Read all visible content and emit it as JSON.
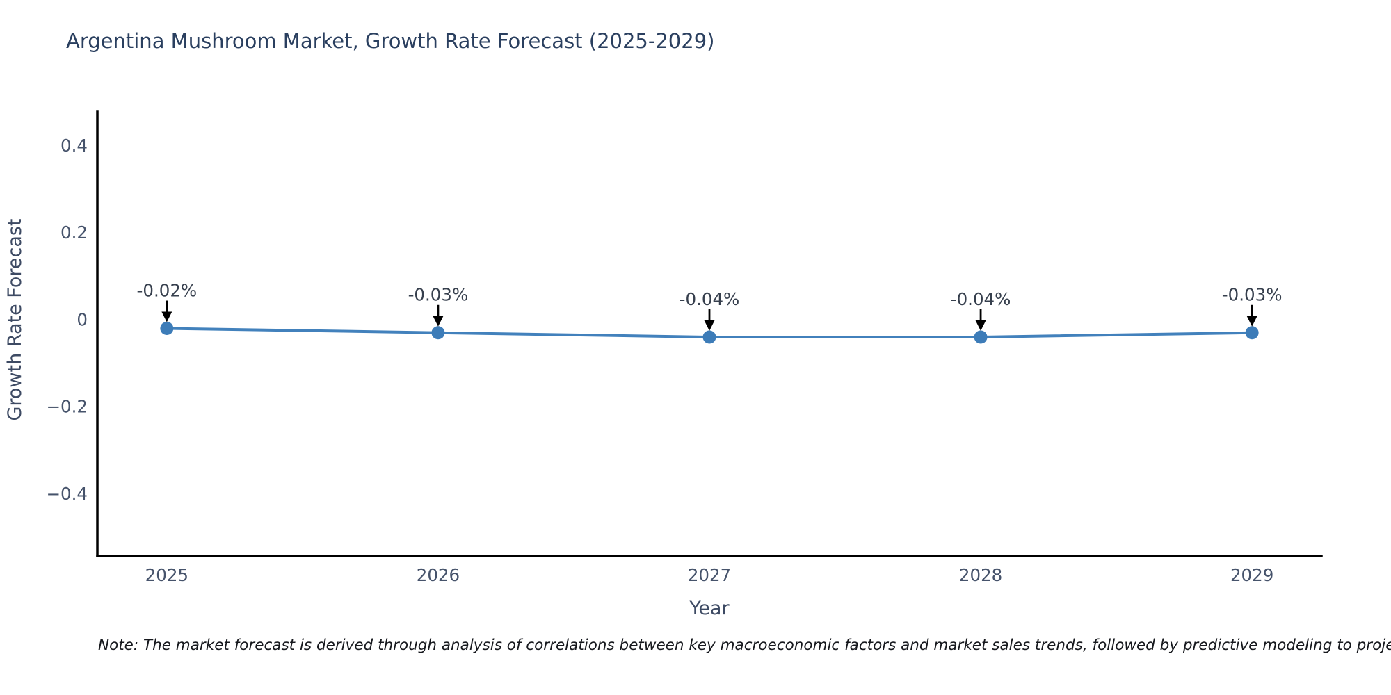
{
  "title": "Argentina Mushroom Market, Growth Rate Forecast (2025-2029)",
  "note": "Note: The market forecast is derived through analysis of correlations between key macroeconomic factors and market sales trends, followed by predictive modeling to project future sa",
  "chart_data": {
    "type": "line",
    "title": "Argentina Mushroom Market, Growth Rate Forecast (2025-2029)",
    "xlabel": "Year",
    "ylabel": "Growth Rate Forecast",
    "x": [
      2025,
      2026,
      2027,
      2028,
      2029
    ],
    "categories": [
      "2025",
      "2026",
      "2027",
      "2028",
      "2029"
    ],
    "series": [
      {
        "name": "Growth Rate Forecast",
        "values": [
          -0.02,
          -0.03,
          -0.04,
          -0.04,
          -0.03
        ]
      }
    ],
    "point_labels": [
      "-0.02%",
      "-0.03%",
      "-0.04%",
      "-0.04%",
      "-0.03%"
    ],
    "yticks": [
      0.4,
      0.2,
      0,
      -0.2,
      -0.4
    ],
    "ytick_labels": [
      "0.4",
      "0.2",
      "0",
      "−0.2",
      "−0.4"
    ],
    "xtick_labels": [
      "2025",
      "2026",
      "2027",
      "2028",
      "2029"
    ],
    "xlim": [
      2024.744,
      2029.256
    ],
    "ylim": [
      -0.543,
      0.479
    ],
    "grid": false,
    "legend": "none",
    "marker_style": "circle",
    "annotation_arrows": true,
    "colors": {
      "line": "#4281bc",
      "marker": "#3d7cb8",
      "axis": "#000000",
      "arrow": "#000000",
      "tick_label": "#46536b",
      "axis_title": "#3d4a63",
      "title_text": "#2a3f5f",
      "annotation_text": "#363f4d",
      "background": "#ffffff"
    }
  }
}
